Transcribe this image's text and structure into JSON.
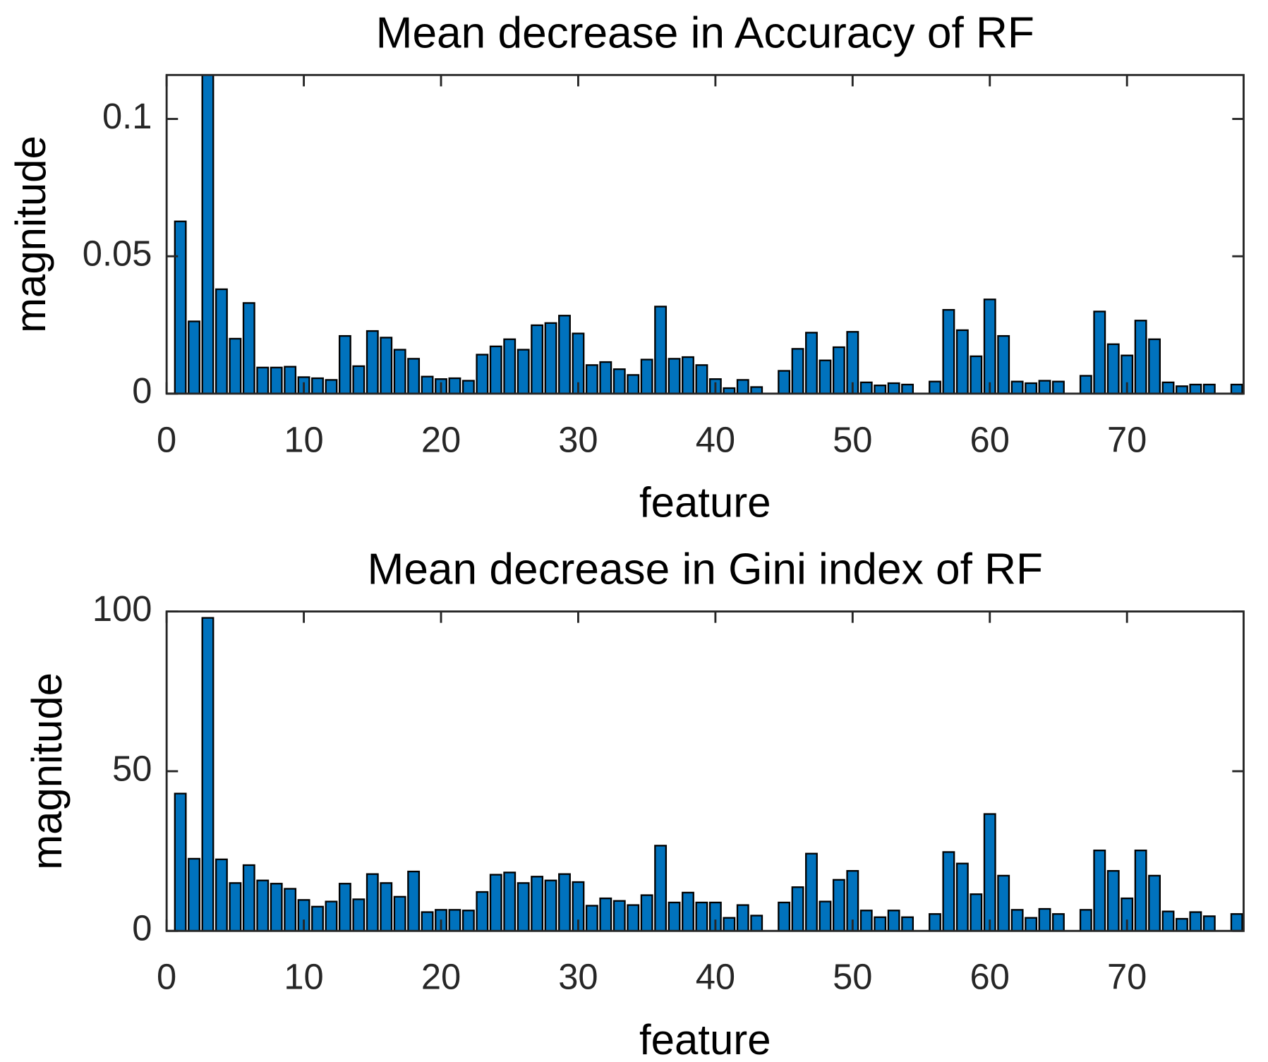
{
  "chart_data": [
    {
      "type": "bar",
      "title": "Mean decrease in Accuracy of RF",
      "x_label": "feature",
      "y_label": "magnitude",
      "color": "#0072BD",
      "x": [
        1,
        2,
        3,
        4,
        5,
        6,
        7,
        8,
        9,
        10,
        11,
        12,
        13,
        14,
        15,
        16,
        17,
        18,
        19,
        20,
        21,
        22,
        23,
        24,
        25,
        26,
        27,
        28,
        29,
        30,
        31,
        32,
        33,
        34,
        35,
        36,
        37,
        38,
        39,
        40,
        41,
        42,
        43,
        44,
        45,
        46,
        47,
        48,
        49,
        50,
        51,
        52,
        53,
        54,
        55,
        56,
        57,
        58,
        59,
        60,
        61,
        62,
        63,
        64,
        65,
        66,
        67,
        68,
        69,
        70,
        71,
        72,
        73,
        74,
        75,
        76,
        77,
        78
      ],
      "values": [
        0.0627,
        0.0263,
        0.12,
        0.038,
        0.02,
        0.033,
        0.0095,
        0.0095,
        0.0098,
        0.006,
        0.0056,
        0.005,
        0.021,
        0.01,
        0.0228,
        0.0204,
        0.016,
        0.0127,
        0.0062,
        0.0053,
        0.0056,
        0.0047,
        0.0142,
        0.0172,
        0.0198,
        0.016,
        0.0249,
        0.0257,
        0.0284,
        0.0219,
        0.0104,
        0.0115,
        0.0089,
        0.0068,
        0.0124,
        0.0317,
        0.0127,
        0.0133,
        0.0104,
        0.0053,
        0.002,
        0.005,
        0.0024,
        0,
        0.0083,
        0.0163,
        0.0222,
        0.0121,
        0.0169,
        0.0225,
        0.0041,
        0.003,
        0.0038,
        0.0033,
        0,
        0.0044,
        0.0305,
        0.0231,
        0.0136,
        0.0343,
        0.021,
        0.0044,
        0.0038,
        0.0047,
        0.0044,
        0,
        0.0065,
        0.0299,
        0.018,
        0.0139,
        0.0266,
        0.0198,
        0.0041,
        0.0027,
        0.0033,
        0.0033,
        0,
        0.0033
      ],
      "xlim": [
        0,
        78.5
      ],
      "xticks": [
        0,
        10,
        20,
        30,
        40,
        50,
        60,
        70
      ],
      "ylim": [
        0,
        0.116
      ],
      "yticks": [
        0,
        0.05,
        0.1
      ]
    },
    {
      "type": "bar",
      "title": "Mean decrease in Gini index of RF",
      "x_label": "feature",
      "y_label": "magnitude",
      "color": "#0072BD",
      "x": [
        1,
        2,
        3,
        4,
        5,
        6,
        7,
        8,
        9,
        10,
        11,
        12,
        13,
        14,
        15,
        16,
        17,
        18,
        19,
        20,
        21,
        22,
        23,
        24,
        25,
        26,
        27,
        28,
        29,
        30,
        31,
        32,
        33,
        34,
        35,
        36,
        37,
        38,
        39,
        40,
        41,
        42,
        43,
        44,
        45,
        46,
        47,
        48,
        49,
        50,
        51,
        52,
        53,
        54,
        55,
        56,
        57,
        58,
        59,
        60,
        61,
        62,
        63,
        64,
        65,
        66,
        67,
        68,
        69,
        70,
        71,
        72,
        73,
        74,
        75,
        76,
        77,
        78
      ],
      "values": [
        43,
        22.6,
        98,
        22.4,
        15,
        20.6,
        15.8,
        14.8,
        13.2,
        9.7,
        7.6,
        9.2,
        14.8,
        9.9,
        17.8,
        15,
        10.7,
        18.6,
        5.9,
        6.6,
        6.6,
        6.4,
        12.2,
        17.6,
        18.3,
        15,
        17,
        15.8,
        17.8,
        15.3,
        7.9,
        10.2,
        9.4,
        8.1,
        11.2,
        26.7,
        8.9,
        12,
        8.9,
        8.9,
        4.1,
        8.1,
        4.8,
        0,
        8.9,
        13.7,
        24.2,
        9.2,
        16,
        18.8,
        6.4,
        4.3,
        6.4,
        4.3,
        0,
        5.3,
        24.7,
        21.1,
        11.5,
        36.6,
        17.3,
        6.6,
        4.1,
        6.9,
        5.3,
        0,
        6.6,
        25.2,
        18.8,
        10.2,
        25.2,
        17.3,
        6.1,
        3.8,
        5.9,
        4.6,
        0,
        5.3
      ],
      "xlim": [
        0,
        78.5
      ],
      "xticks": [
        0,
        10,
        20,
        30,
        40,
        50,
        60,
        70
      ],
      "ylim": [
        0,
        100
      ],
      "yticks": [
        0,
        50,
        100
      ]
    }
  ]
}
